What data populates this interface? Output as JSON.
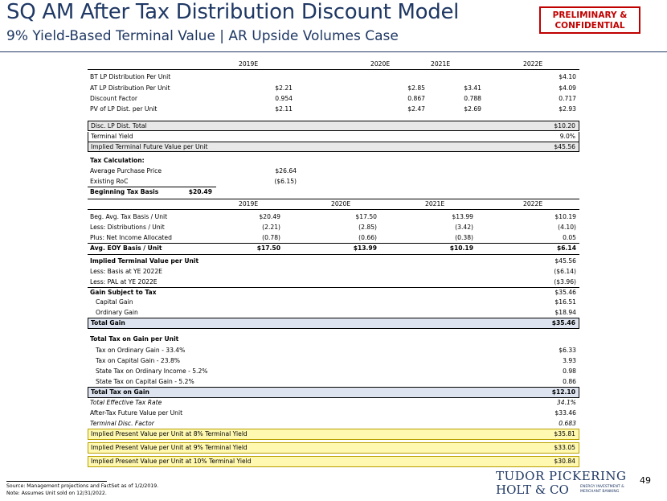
{
  "header": {
    "title": "SQ AM After Tax Distribution Discount Model",
    "subtitle": "9% Yield-Based Terminal Value | AR Upside Volumes Case",
    "confidential": "PRELIMINARY & CONFIDENTIAL"
  },
  "years": [
    "2019E",
    "2020E",
    "2021E",
    "2022E"
  ],
  "distribution": [
    {
      "label": "BT LP Distribution Per Unit",
      "values": [
        "",
        "",
        "",
        "$4.10"
      ]
    },
    {
      "label": "AT LP Distribution Per Unit",
      "values": [
        "$2.21",
        "$2.85",
        "$3.41",
        "$4.09"
      ]
    },
    {
      "label": "Discount Factor",
      "values": [
        "0.954",
        "0.867",
        "0.788",
        "0.717"
      ]
    },
    {
      "label": "PV of LP Dist. per Unit",
      "values": [
        "$2.11",
        "$2.47",
        "$2.69",
        "$2.93"
      ]
    }
  ],
  "terminal": {
    "disc_total_label": "Disc. LP Dist. Total",
    "disc_total": "$10.20",
    "yield_label": "Terminal Yield",
    "yield": "9.0%",
    "future_label": "Implied Terminal Future Value per Unit",
    "future": "$45.56"
  },
  "tax_calc": {
    "title": "Tax Calculation:",
    "items": [
      {
        "label": "Average Purchase Price",
        "value": "$26.64"
      },
      {
        "label": "Existing RoC",
        "value": "($6.15)"
      },
      {
        "label": "Beginning Tax Basis",
        "value": "$20.49"
      }
    ]
  },
  "basis": [
    {
      "label": "Beg. Avg. Tax Basis / Unit",
      "values": [
        "$20.49",
        "$17.50",
        "$13.99",
        "$10.19"
      ]
    },
    {
      "label": "Less: Distributions / Unit",
      "values": [
        "(2.21)",
        "(2.85)",
        "(3.42)",
        "(4.10)"
      ]
    },
    {
      "label": "Plus: Net Income Allocated",
      "values": [
        "(0.78)",
        "(0.66)",
        "(0.38)",
        "0.05"
      ]
    },
    {
      "label": "Avg. EOY Basis / Unit",
      "values": [
        "$17.50",
        "$13.99",
        "$10.19",
        "$6.14"
      ]
    }
  ],
  "gain": [
    {
      "label": "Implied Terminal Value per Unit",
      "value": "$45.56"
    },
    {
      "label": "Less: Basis at YE 2022E",
      "value": "($6.14)"
    },
    {
      "label": "Less: PAL at YE 2022E",
      "value": "($3.96)"
    },
    {
      "label": "Gain Subject to Tax",
      "value": "$35.46"
    },
    {
      "label": "Capital Gain",
      "value": "$16.51"
    },
    {
      "label": "Ordinary Gain",
      "value": "$18.94"
    },
    {
      "label": "Total Gain",
      "value": "$35.46"
    }
  ],
  "tax": [
    {
      "label": "Total Tax on Gain per Unit",
      "value": ""
    },
    {
      "label": "Tax on Ordinary Gain - 33.4%",
      "value": "$6.33"
    },
    {
      "label": "Tax on Capital Gain - 23.8%",
      "value": "3.93"
    },
    {
      "label": "State Tax on Ordinary Income - 5.2%",
      "value": "0.98"
    },
    {
      "label": "State Tax on Capital Gain - 5.2%",
      "value": "0.86"
    },
    {
      "label": "Total Tax on Gain",
      "value": "$12.10"
    },
    {
      "label": "Total Effective Tax Rate",
      "value": "34.1%"
    },
    {
      "label": "After-Tax Future Value per Unit",
      "value": "$33.46"
    },
    {
      "label": "Terminal Disc. Factor",
      "value": "0.683"
    }
  ],
  "implied": [
    {
      "label": "Implied Present Value per Unit at 8% Terminal Yield",
      "value": "$35.81"
    },
    {
      "label": "Implied Present Value per Unit at 9% Terminal Yield",
      "value": "$33.05"
    },
    {
      "label": "Implied Present Value per Unit at 10% Terminal Yield",
      "value": "$30.84"
    }
  ],
  "footer": {
    "source": "Source: Management projections and FactSet as of 1/2/2019.",
    "note": "Note: Assumes Unit sold on 12/31/2022.",
    "page": "49",
    "logo_line1": "TUDOR PICKERING",
    "logo_line2": "HOLT & CO",
    "logo_tag1": "ENERGY INVESTMENT &",
    "logo_tag2": "MERCHANT BANKING"
  }
}
